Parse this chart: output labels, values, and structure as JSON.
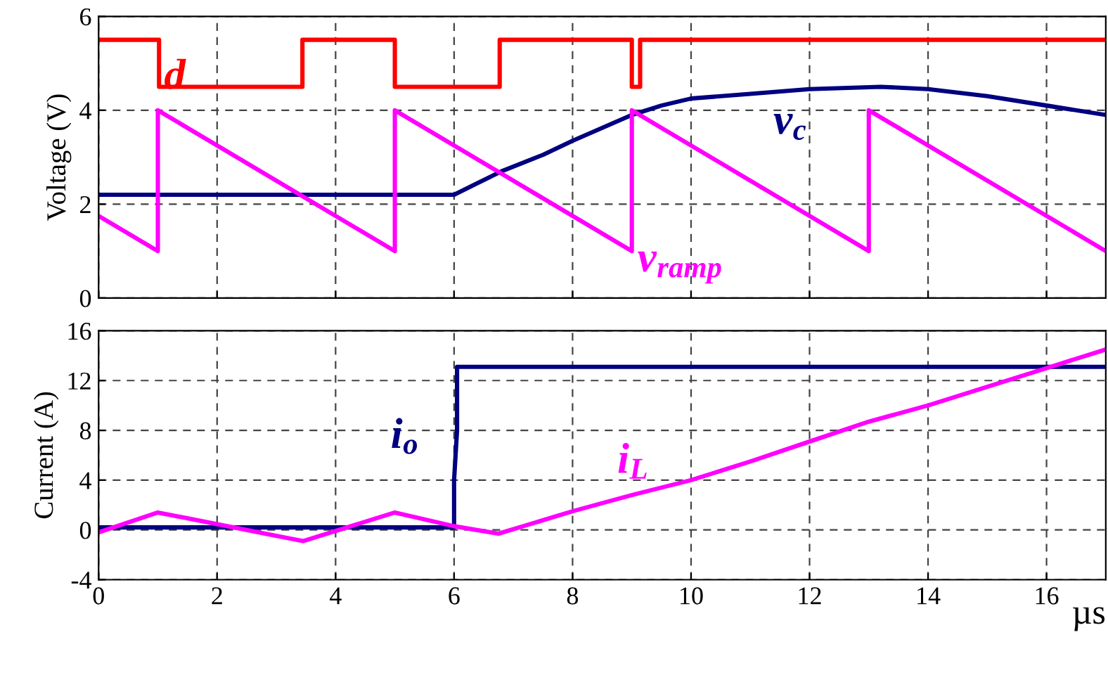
{
  "chart_data": [
    {
      "type": "line",
      "ylabel": "Voltage (V)",
      "xlim": [
        0,
        17
      ],
      "xticks": [
        0,
        2,
        4,
        6,
        8,
        10,
        12,
        14,
        16
      ],
      "ylim": [
        0,
        6
      ],
      "yticks": [
        0,
        2,
        4,
        6
      ],
      "grid": true,
      "tick_labels": "y",
      "legend": false,
      "series": [
        {
          "name": "d",
          "color": "#ff0000",
          "x": [
            0,
            1.02,
            1.02,
            3.44,
            3.44,
            5.0,
            5.0,
            6.77,
            6.77,
            9.0,
            9.0,
            9.14,
            9.14,
            17
          ],
          "values": [
            5.5,
            5.5,
            4.5,
            4.5,
            5.5,
            5.5,
            4.5,
            4.5,
            5.5,
            5.5,
            4.5,
            4.5,
            5.5,
            5.5
          ]
        },
        {
          "name": "v$_{c}$",
          "color": "#000080",
          "x": [
            0,
            1.0,
            3.4,
            5.0,
            6.0,
            6.4,
            6.8,
            7.5,
            8.0,
            9.0,
            9.5,
            10,
            11,
            12,
            13.2,
            14,
            15,
            16,
            17
          ],
          "values": [
            2.2,
            2.2,
            2.2,
            2.2,
            2.2,
            2.45,
            2.7,
            3.05,
            3.35,
            3.9,
            4.1,
            4.25,
            4.35,
            4.45,
            4.5,
            4.45,
            4.3,
            4.1,
            3.9
          ]
        },
        {
          "name": "v$_{ramp}$",
          "color": "#ff00ff",
          "x": [
            0,
            1.0,
            1.0,
            5.0,
            5.0,
            9.0,
            9.0,
            13.0,
            13.0,
            17
          ],
          "values": [
            1.75,
            1.0,
            4.0,
            1.0,
            4.0,
            1.0,
            4.0,
            1.0,
            4.0,
            1.0
          ]
        }
      ]
    },
    {
      "type": "line",
      "ylabel": "Current (A)",
      "xlabel": "µs",
      "xlim": [
        0,
        17
      ],
      "xticks": [
        0,
        2,
        4,
        6,
        8,
        10,
        12,
        14,
        16
      ],
      "ylim": [
        -4,
        16
      ],
      "yticks": [
        -4,
        0,
        4,
        8,
        12,
        16
      ],
      "grid": true,
      "legend": false,
      "series": [
        {
          "name": "i$_{o}$",
          "color": "#000080",
          "x": [
            0,
            6.0,
            6.0,
            6.05,
            6.05,
            17
          ],
          "values": [
            0.2,
            0.2,
            4.0,
            8.0,
            13.1,
            13.1
          ]
        },
        {
          "name": "i$_{L}$",
          "color": "#ff00ff",
          "x": [
            0,
            1.0,
            3.45,
            5.0,
            6.0,
            6.75,
            8.0,
            9.0,
            10,
            11,
            12,
            13,
            14,
            15,
            16,
            17
          ],
          "values": [
            -0.2,
            1.4,
            -0.9,
            1.4,
            0.3,
            -0.3,
            1.5,
            2.8,
            4.0,
            5.5,
            7.1,
            8.7,
            10.0,
            11.5,
            13.0,
            14.5
          ]
        }
      ]
    }
  ]
}
